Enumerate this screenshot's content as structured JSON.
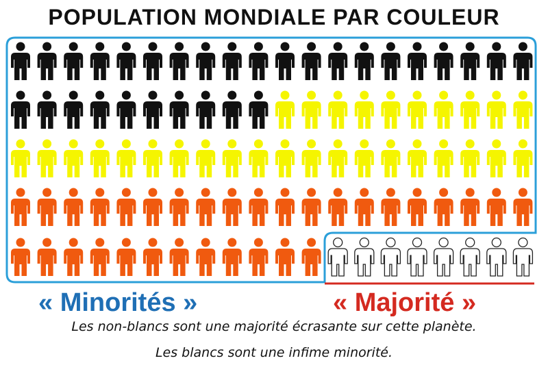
{
  "title": "POPULATION MONDIALE PAR COULEUR",
  "colors": {
    "black": "#111111",
    "yellow": "#f5f500",
    "orange": "#f05a0f",
    "white": "#ffffff",
    "frame_blue": "#2b9fd9",
    "majority_red": "#d42a20",
    "minority_blue": "#1f6fb5"
  },
  "pictogram": {
    "rows": [
      [
        "black",
        "black",
        "black",
        "black",
        "black",
        "black",
        "black",
        "black",
        "black",
        "black",
        "black",
        "black",
        "black",
        "black",
        "black",
        "black",
        "black",
        "black",
        "black",
        "black"
      ],
      [
        "black",
        "black",
        "black",
        "black",
        "black",
        "black",
        "black",
        "black",
        "black",
        "black",
        "yellow",
        "yellow",
        "yellow",
        "yellow",
        "yellow",
        "yellow",
        "yellow",
        "yellow",
        "yellow",
        "yellow"
      ],
      [
        "yellow",
        "yellow",
        "yellow",
        "yellow",
        "yellow",
        "yellow",
        "yellow",
        "yellow",
        "yellow",
        "yellow",
        "yellow",
        "yellow",
        "yellow",
        "yellow",
        "yellow",
        "yellow",
        "yellow",
        "yellow",
        "yellow",
        "yellow"
      ],
      [
        "orange",
        "orange",
        "orange",
        "orange",
        "orange",
        "orange",
        "orange",
        "orange",
        "orange",
        "orange",
        "orange",
        "orange",
        "orange",
        "orange",
        "orange",
        "orange",
        "orange",
        "orange",
        "orange",
        "orange"
      ],
      [
        "orange",
        "orange",
        "orange",
        "orange",
        "orange",
        "orange",
        "orange",
        "orange",
        "orange",
        "orange",
        "orange",
        "orange",
        "white",
        "white",
        "white",
        "white",
        "white",
        "white",
        "white",
        "white"
      ]
    ]
  },
  "labels": {
    "minorities": "« Minorités »",
    "majority": "« Majorité »"
  },
  "caption": {
    "line1": "Les non-blancs sont une majorité écrasante sur cette planète.",
    "line2": "Les blancs sont une infime minorité."
  }
}
